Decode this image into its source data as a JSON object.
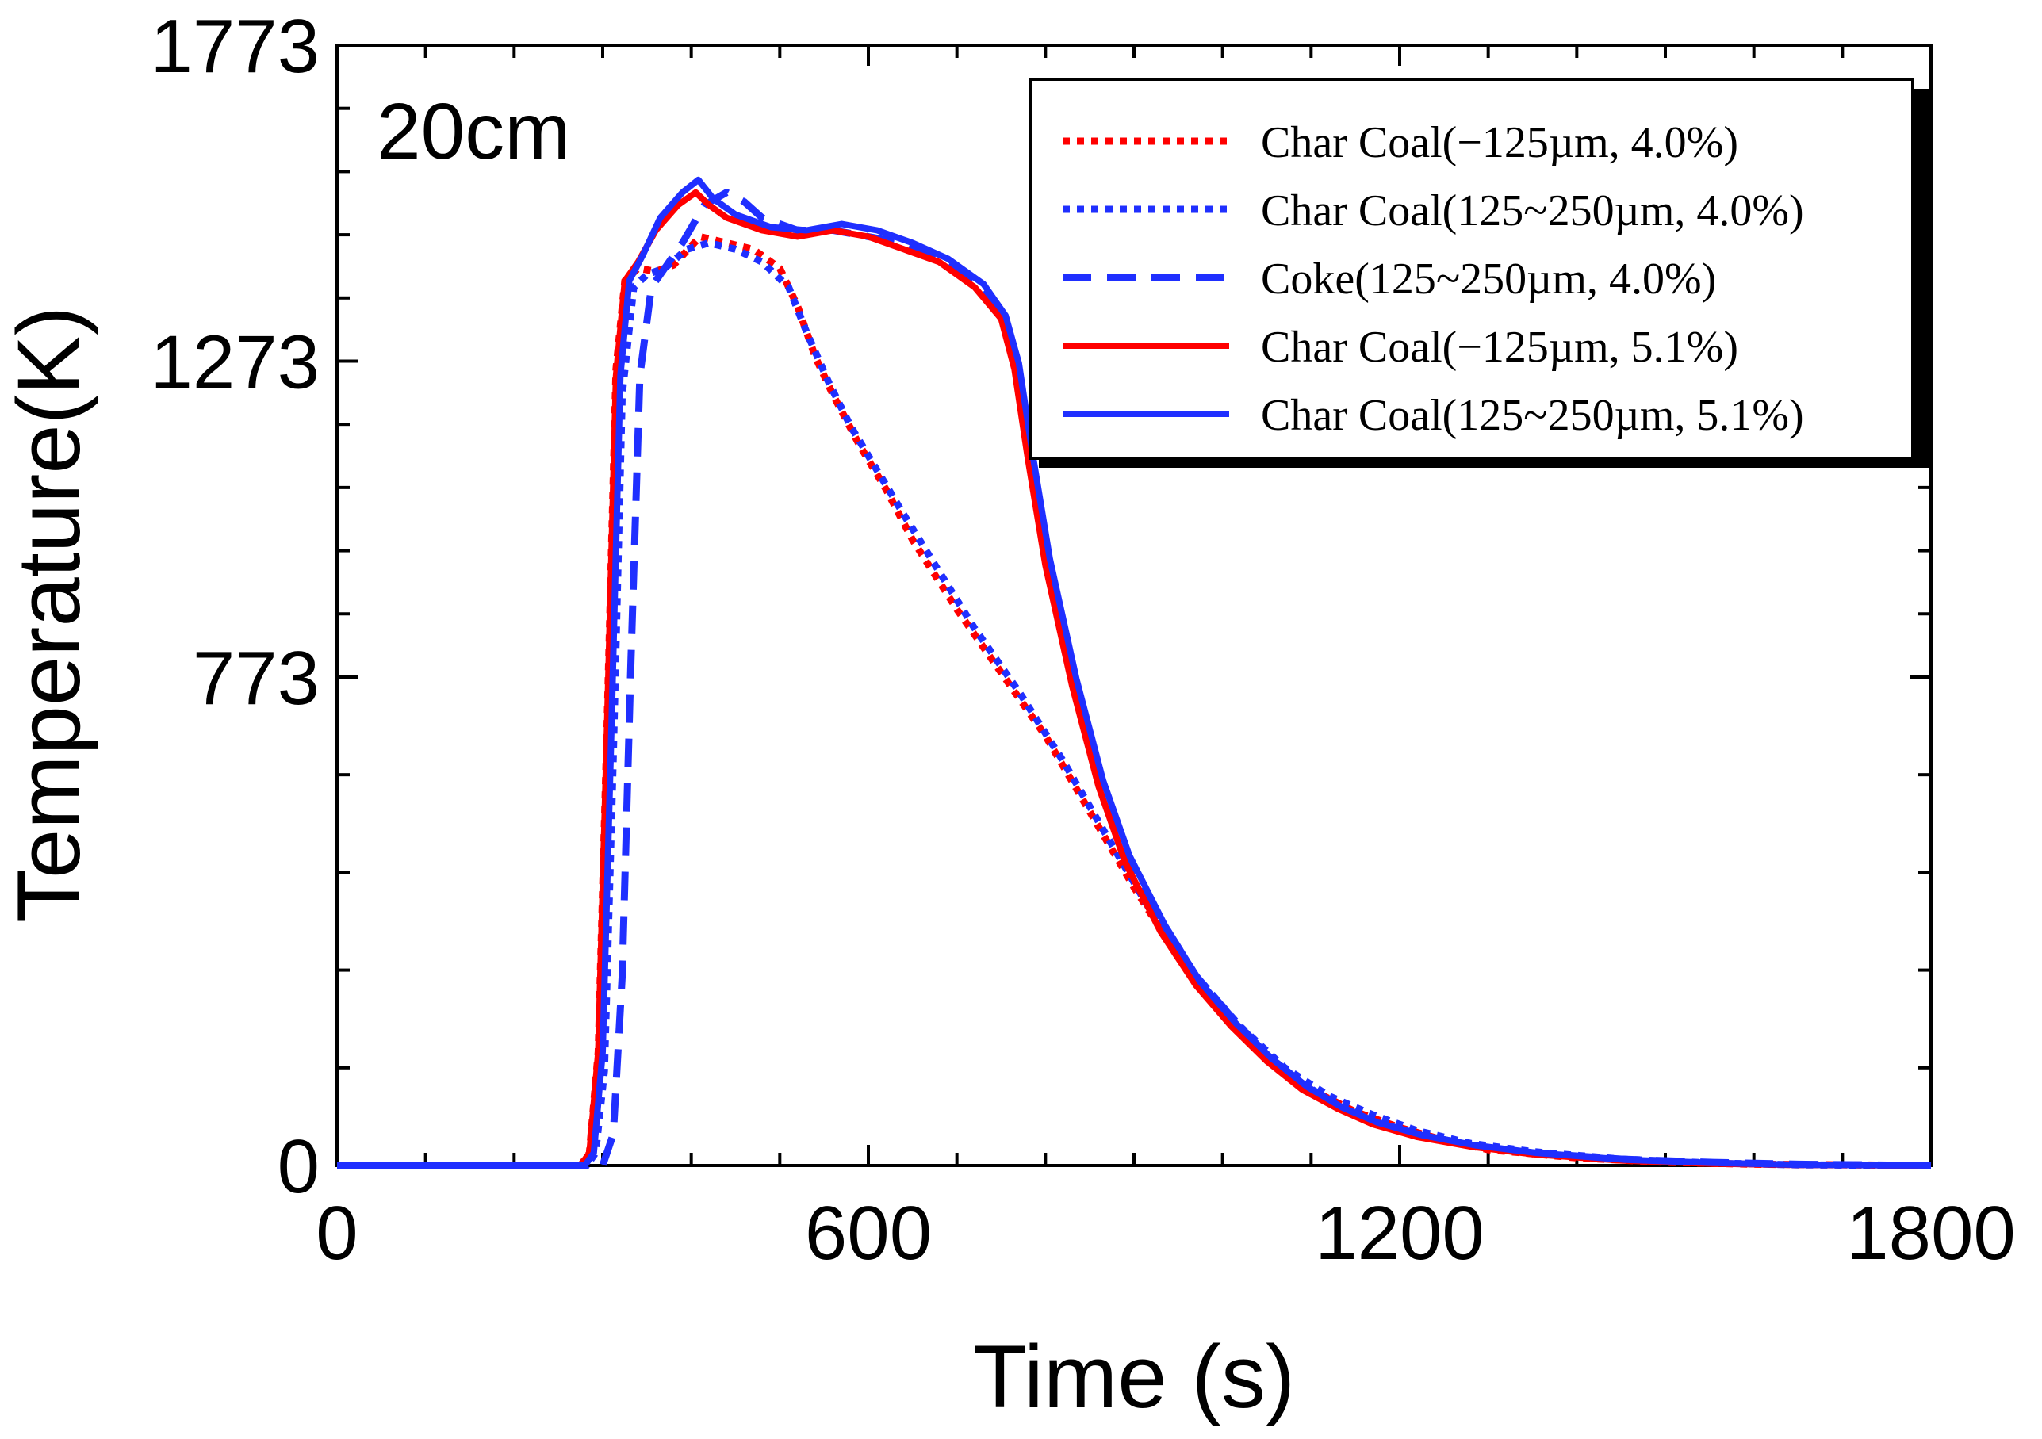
{
  "chart_data": {
    "type": "line",
    "annotation": "20cm",
    "xlabel": "Time (s)",
    "ylabel": "Temperature(K)",
    "xlim": [
      0,
      1800
    ],
    "ylim": [
      0,
      1773
    ],
    "xticks": [
      0,
      600,
      1200,
      1800
    ],
    "xtick_labels": [
      "0",
      "600",
      "1200",
      "1800"
    ],
    "yticks": [
      0,
      773,
      1273,
      1773
    ],
    "ytick_labels": [
      "0",
      "773",
      "1273",
      "1773"
    ],
    "legend_position": "top-right",
    "colors": {
      "red": "#ff0000",
      "blue": "#1f2fff"
    },
    "series": [
      {
        "name": "Char Coal(−125µm, 4.0%)",
        "color": "#ff0000",
        "style": "dotted",
        "points": [
          [
            0,
            0
          ],
          [
            275,
            0
          ],
          [
            285,
            20
          ],
          [
            295,
            180
          ],
          [
            305,
            700
          ],
          [
            315,
            1260
          ],
          [
            325,
            1400
          ],
          [
            340,
            1420
          ],
          [
            360,
            1415
          ],
          [
            380,
            1425
          ],
          [
            410,
            1470
          ],
          [
            440,
            1460
          ],
          [
            470,
            1450
          ],
          [
            500,
            1420
          ],
          [
            520,
            1360
          ],
          [
            540,
            1280
          ],
          [
            560,
            1220
          ],
          [
            590,
            1140
          ],
          [
            620,
            1070
          ],
          [
            650,
            990
          ],
          [
            700,
            880
          ],
          [
            750,
            780
          ],
          [
            800,
            680
          ],
          [
            850,
            560
          ],
          [
            900,
            440
          ],
          [
            950,
            330
          ],
          [
            1000,
            240
          ],
          [
            1050,
            170
          ],
          [
            1100,
            120
          ],
          [
            1150,
            85
          ],
          [
            1200,
            60
          ],
          [
            1250,
            40
          ],
          [
            1300,
            25
          ],
          [
            1400,
            12
          ],
          [
            1500,
            5
          ],
          [
            1600,
            2
          ],
          [
            1800,
            0
          ]
        ]
      },
      {
        "name": "Char Coal(125~250µm, 4.0%)",
        "color": "#1f2fff",
        "style": "dotted",
        "points": [
          [
            0,
            0
          ],
          [
            282,
            0
          ],
          [
            292,
            20
          ],
          [
            302,
            150
          ],
          [
            312,
            650
          ],
          [
            322,
            1220
          ],
          [
            335,
            1390
          ],
          [
            350,
            1410
          ],
          [
            370,
            1420
          ],
          [
            395,
            1450
          ],
          [
            420,
            1460
          ],
          [
            450,
            1450
          ],
          [
            480,
            1430
          ],
          [
            510,
            1390
          ],
          [
            530,
            1320
          ],
          [
            555,
            1240
          ],
          [
            580,
            1170
          ],
          [
            610,
            1100
          ],
          [
            640,
            1030
          ],
          [
            680,
            940
          ],
          [
            720,
            850
          ],
          [
            770,
            750
          ],
          [
            820,
            640
          ],
          [
            870,
            520
          ],
          [
            920,
            400
          ],
          [
            970,
            300
          ],
          [
            1020,
            220
          ],
          [
            1070,
            155
          ],
          [
            1120,
            110
          ],
          [
            1170,
            80
          ],
          [
            1220,
            55
          ],
          [
            1280,
            35
          ],
          [
            1350,
            22
          ],
          [
            1450,
            10
          ],
          [
            1550,
            4
          ],
          [
            1650,
            1
          ],
          [
            1800,
            0
          ]
        ]
      },
      {
        "name": "Coke(125~250µm, 4.0%)",
        "color": "#1f2fff",
        "style": "dashed",
        "points": [
          [
            0,
            0
          ],
          [
            300,
            0
          ],
          [
            312,
            50
          ],
          [
            322,
            300
          ],
          [
            332,
            800
          ],
          [
            342,
            1250
          ],
          [
            355,
            1390
          ],
          [
            370,
            1420
          ],
          [
            390,
            1460
          ],
          [
            415,
            1520
          ],
          [
            440,
            1540
          ],
          [
            460,
            1525
          ],
          [
            480,
            1500
          ],
          [
            520,
            1480
          ],
          [
            560,
            1480
          ],
          [
            600,
            1470
          ],
          [
            640,
            1460
          ],
          [
            680,
            1440
          ],
          [
            720,
            1400
          ],
          [
            750,
            1350
          ],
          [
            765,
            1270
          ],
          [
            780,
            1130
          ],
          [
            800,
            960
          ],
          [
            830,
            780
          ],
          [
            860,
            620
          ],
          [
            890,
            500
          ],
          [
            930,
            390
          ],
          [
            970,
            300
          ],
          [
            1010,
            235
          ],
          [
            1050,
            175
          ],
          [
            1090,
            130
          ],
          [
            1130,
            95
          ],
          [
            1170,
            70
          ],
          [
            1220,
            50
          ],
          [
            1280,
            32
          ],
          [
            1350,
            20
          ],
          [
            1450,
            10
          ],
          [
            1550,
            5
          ],
          [
            1650,
            2
          ],
          [
            1800,
            0
          ]
        ]
      },
      {
        "name": "Char Coal(−125µm, 5.1%)",
        "color": "#ff0000",
        "style": "solid",
        "points": [
          [
            0,
            0
          ],
          [
            275,
            0
          ],
          [
            285,
            20
          ],
          [
            295,
            180
          ],
          [
            305,
            700
          ],
          [
            315,
            1250
          ],
          [
            325,
            1400
          ],
          [
            340,
            1430
          ],
          [
            360,
            1480
          ],
          [
            385,
            1520
          ],
          [
            405,
            1540
          ],
          [
            420,
            1520
          ],
          [
            440,
            1500
          ],
          [
            480,
            1480
          ],
          [
            520,
            1470
          ],
          [
            560,
            1480
          ],
          [
            600,
            1470
          ],
          [
            640,
            1450
          ],
          [
            680,
            1430
          ],
          [
            720,
            1390
          ],
          [
            750,
            1340
          ],
          [
            765,
            1260
          ],
          [
            780,
            1120
          ],
          [
            800,
            950
          ],
          [
            830,
            760
          ],
          [
            860,
            600
          ],
          [
            890,
            480
          ],
          [
            930,
            370
          ],
          [
            970,
            285
          ],
          [
            1010,
            220
          ],
          [
            1050,
            165
          ],
          [
            1090,
            120
          ],
          [
            1130,
            90
          ],
          [
            1170,
            65
          ],
          [
            1220,
            45
          ],
          [
            1280,
            30
          ],
          [
            1350,
            18
          ],
          [
            1450,
            8
          ],
          [
            1550,
            3
          ],
          [
            1650,
            1
          ],
          [
            1800,
            0
          ]
        ]
      },
      {
        "name": "Char Coal(125~250µm, 5.1%)",
        "color": "#1f2fff",
        "style": "solid",
        "points": [
          [
            0,
            0
          ],
          [
            280,
            0
          ],
          [
            290,
            20
          ],
          [
            300,
            180
          ],
          [
            310,
            700
          ],
          [
            320,
            1250
          ],
          [
            330,
            1400
          ],
          [
            345,
            1440
          ],
          [
            365,
            1500
          ],
          [
            390,
            1540
          ],
          [
            408,
            1560
          ],
          [
            425,
            1530
          ],
          [
            450,
            1505
          ],
          [
            490,
            1485
          ],
          [
            530,
            1480
          ],
          [
            570,
            1490
          ],
          [
            610,
            1480
          ],
          [
            650,
            1460
          ],
          [
            690,
            1435
          ],
          [
            730,
            1395
          ],
          [
            755,
            1345
          ],
          [
            770,
            1270
          ],
          [
            785,
            1130
          ],
          [
            805,
            960
          ],
          [
            835,
            770
          ],
          [
            865,
            610
          ],
          [
            895,
            490
          ],
          [
            935,
            380
          ],
          [
            975,
            290
          ],
          [
            1015,
            225
          ],
          [
            1055,
            170
          ],
          [
            1095,
            125
          ],
          [
            1135,
            92
          ],
          [
            1175,
            68
          ],
          [
            1225,
            48
          ],
          [
            1285,
            32
          ],
          [
            1355,
            20
          ],
          [
            1455,
            9
          ],
          [
            1555,
            4
          ],
          [
            1655,
            1
          ],
          [
            1800,
            0
          ]
        ]
      }
    ]
  }
}
